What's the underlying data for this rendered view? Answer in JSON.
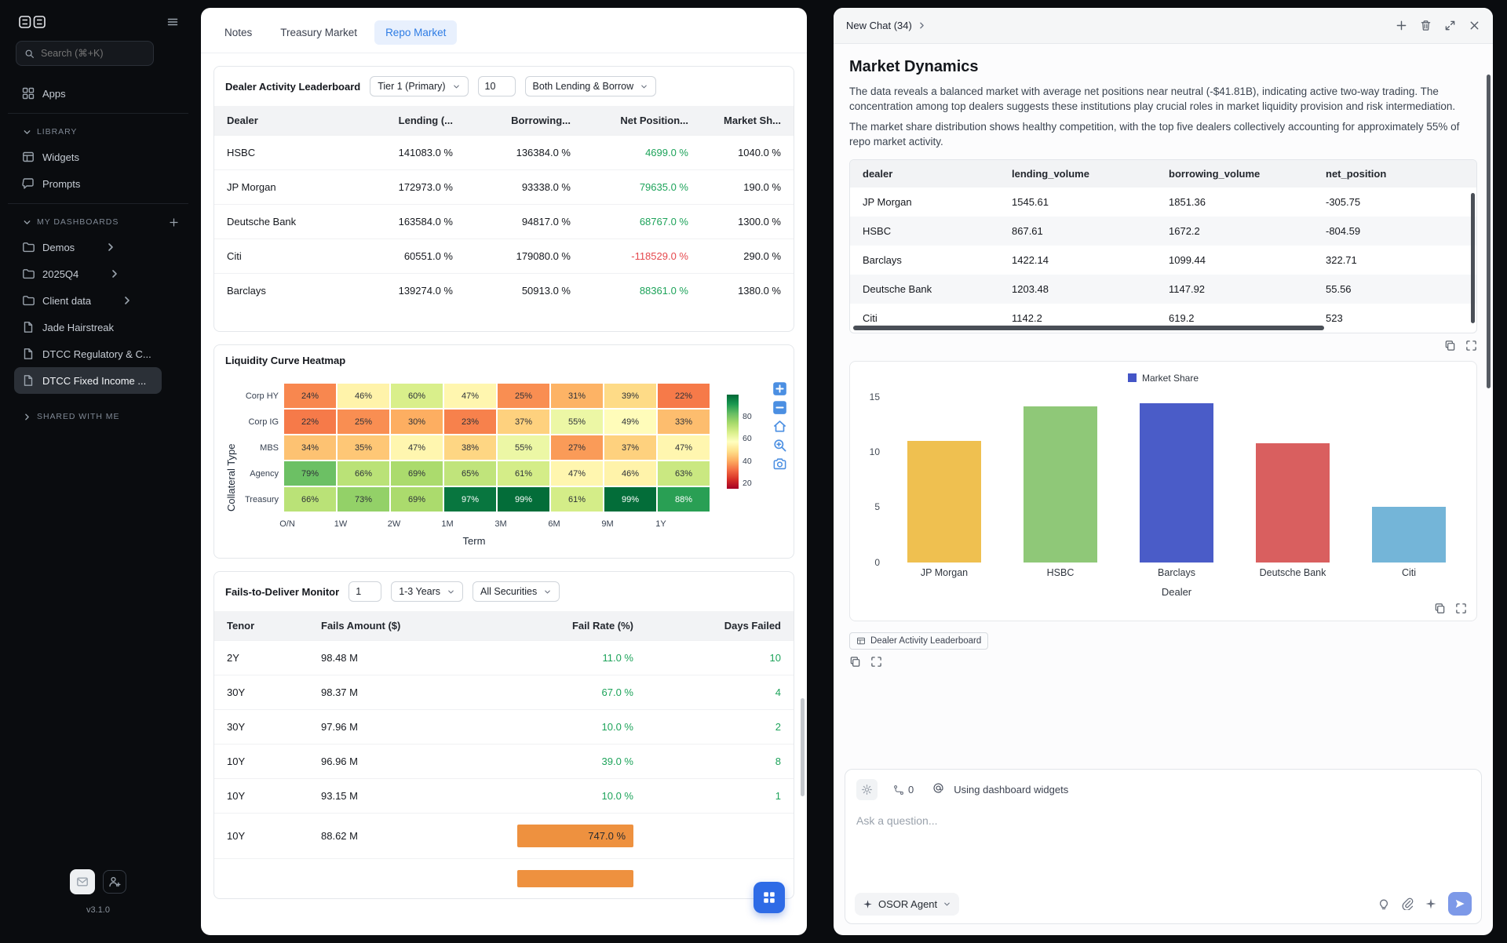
{
  "colors": {
    "accent_blue": "#2e7ce4",
    "positive_green": "#1da35a",
    "negative_red": "#e5484d",
    "fail_bar_orange": "#ee913f",
    "send_button_blue": "#7d99e8",
    "floating_button_blue": "#2e6be6"
  },
  "sidebar": {
    "search_placeholder": "Search (⌘+K)",
    "apps_label": "Apps",
    "sections": {
      "library": "LIBRARY",
      "my_dashboards": "MY DASHBOARDS",
      "shared": "SHARED WITH ME"
    },
    "library_items": [
      {
        "label": "Widgets",
        "icon": "widgets"
      },
      {
        "label": "Prompts",
        "icon": "prompts"
      }
    ],
    "dashboard_items": [
      {
        "label": "Demos",
        "type": "folder",
        "chevron": true
      },
      {
        "label": "2025Q4",
        "type": "folder",
        "chevron": true
      },
      {
        "label": "Client data",
        "type": "folder",
        "chevron": true
      },
      {
        "label": "Jade Hairstreak",
        "type": "file"
      },
      {
        "label": "DTCC Regulatory & C...",
        "type": "file"
      },
      {
        "label": "DTCC Fixed Income ...",
        "type": "file",
        "active": true
      }
    ],
    "version": "v3.1.0"
  },
  "tabs": [
    {
      "label": "Notes"
    },
    {
      "label": "Treasury Market"
    },
    {
      "label": "Repo Market",
      "active": true
    }
  ],
  "leaderboard": {
    "title": "Dealer Activity Leaderboard",
    "tier_select": "Tier 1 (Primary)",
    "count_input": "10",
    "side_select": "Both Lending & Borrow",
    "columns": [
      "Dealer",
      "Lending (...",
      "Borrowing...",
      "Net Position...",
      "Market Sh..."
    ],
    "rows": [
      {
        "dealer": "HSBC",
        "lending": "141083.0 %",
        "borrowing": "136384.0 %",
        "net": "4699.0 %",
        "share": "1040.0 %"
      },
      {
        "dealer": "JP Morgan",
        "lending": "172973.0 %",
        "borrowing": "93338.0 %",
        "net": "79635.0 %",
        "share": "190.0 %"
      },
      {
        "dealer": "Deutsche Bank",
        "lending": "163584.0 %",
        "borrowing": "94817.0 %",
        "net": "68767.0 %",
        "share": "1300.0 %"
      },
      {
        "dealer": "Citi",
        "lending": "60551.0 %",
        "borrowing": "179080.0 %",
        "net": "-118529.0 %",
        "share": "290.0 %"
      },
      {
        "dealer": "Barclays",
        "lending": "139274.0 %",
        "borrowing": "50913.0 %",
        "net": "88361.0 %",
        "share": "1380.0 %"
      }
    ]
  },
  "heatmap": {
    "title": "Liquidity Curve Heatmap",
    "y_axis_label": "Collateral Type",
    "x_axis_label": "Term",
    "row_labels": [
      "Corp HY",
      "Corp IG",
      "MBS",
      "Agency",
      "Treasury"
    ],
    "col_labels": [
      "O/N",
      "1W",
      "2W",
      "1M",
      "3M",
      "6M",
      "9M",
      "1Y"
    ],
    "values": [
      [
        24,
        46,
        60,
        47,
        25,
        31,
        39,
        22
      ],
      [
        22,
        25,
        30,
        23,
        37,
        55,
        49,
        33
      ],
      [
        34,
        35,
        47,
        38,
        55,
        27,
        37,
        47
      ],
      [
        79,
        66,
        69,
        65,
        61,
        47,
        46,
        63
      ],
      [
        66,
        73,
        69,
        97,
        99,
        61,
        99,
        88
      ]
    ],
    "colorbar_ticks": [
      80,
      60,
      40,
      20
    ]
  },
  "fails": {
    "title": "Fails-to-Deliver Monitor",
    "page_input": "1",
    "range_select": "1-3 Years",
    "securities_select": "All Securities",
    "columns": [
      "Tenor",
      "Fails Amount ($)",
      "Fail Rate (%)",
      "Days Failed"
    ],
    "rows": [
      {
        "tenor": "2Y",
        "amount": "98.48 M",
        "rate": "11.0 %",
        "days": "10",
        "bar": false
      },
      {
        "tenor": "30Y",
        "amount": "98.37 M",
        "rate": "67.0 %",
        "days": "4",
        "bar": false
      },
      {
        "tenor": "30Y",
        "amount": "97.96 M",
        "rate": "10.0 %",
        "days": "2",
        "bar": false
      },
      {
        "tenor": "10Y",
        "amount": "96.96 M",
        "rate": "39.0 %",
        "days": "8",
        "bar": false
      },
      {
        "tenor": "10Y",
        "amount": "93.15 M",
        "rate": "10.0 %",
        "days": "1",
        "bar": false
      },
      {
        "tenor": "10Y",
        "amount": "88.62 M",
        "rate": "747.0 %",
        "days": "",
        "bar": true
      },
      {
        "tenor": "",
        "amount": "",
        "rate": "",
        "days": "",
        "bar": true,
        "partial": true
      }
    ]
  },
  "chat": {
    "title": "New Chat (34)",
    "heading": "Market Dynamics",
    "paragraphs": [
      "The data reveals a balanced market with average net positions near neutral (-$41.81B), indicating active two-way trading. The concentration among top dealers suggests these institutions play crucial roles in market liquidity provision and risk intermediation.",
      "The market share distribution shows healthy competition, with the top five dealers collectively accounting for approximately 55% of repo market activity."
    ],
    "table": {
      "columns": [
        "dealer",
        "lending_volume",
        "borrowing_volume",
        "net_position"
      ],
      "rows": [
        {
          "dealer": "JP Morgan",
          "lending_volume": "1545.61",
          "borrowing_volume": "1851.36",
          "net_position": "-305.75"
        },
        {
          "dealer": "HSBC",
          "lending_volume": "867.61",
          "borrowing_volume": "1672.2",
          "net_position": "-804.59"
        },
        {
          "dealer": "Barclays",
          "lending_volume": "1422.14",
          "borrowing_volume": "1099.44",
          "net_position": "322.71"
        },
        {
          "dealer": "Deutsche Bank",
          "lending_volume": "1203.48",
          "borrowing_volume": "1147.92",
          "net_position": "55.56"
        },
        {
          "dealer": "Citi",
          "lending_volume": "1142.2",
          "borrowing_volume": "619.2",
          "net_position": "523"
        }
      ]
    },
    "widget_link": "Dealer Activity Leaderboard",
    "counter": "0",
    "input_hint": "Using dashboard widgets",
    "placeholder": "Ask a question...",
    "agent": "OSOR Agent"
  },
  "chart_data": {
    "type": "bar",
    "legend": "Market Share",
    "legend_color": "#4455c7",
    "categories": [
      "JP Morgan",
      "HSBC",
      "Barclays",
      "Deutsche Bank",
      "Citi"
    ],
    "values": [
      11,
      14.1,
      14.4,
      10.8,
      5
    ],
    "bar_colors": [
      "#efc050",
      "#8fc878",
      "#4a5cc8",
      "#d95f5f",
      "#74b5d8"
    ],
    "xlabel": "Dealer",
    "ylabel": "",
    "yticks": [
      0,
      5,
      10,
      15
    ],
    "ylim": [
      0,
      15.5
    ],
    "grid": false,
    "legend_position": "top-center"
  }
}
